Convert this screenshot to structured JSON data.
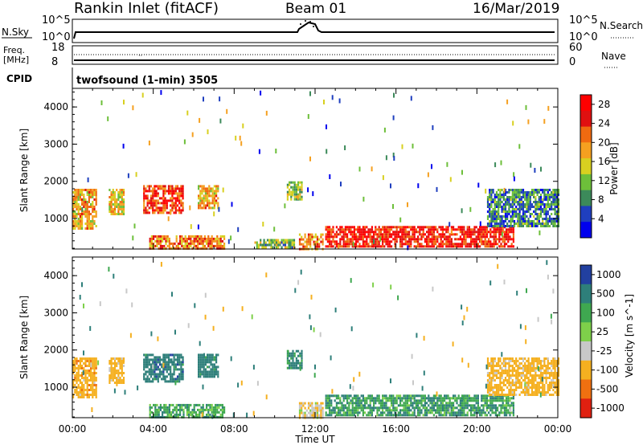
{
  "header": {
    "station": "Rankin Inlet (fitACF)",
    "beam": "Beam 01",
    "date": "16/Mar/2019"
  },
  "noise_panel": {
    "left_label": "N.Sky",
    "right_label": "N.Search",
    "left_ticks": [
      "10^5",
      "10^0"
    ],
    "right_ticks": [
      "10^5",
      "10^0"
    ]
  },
  "freq_panel": {
    "left_label_1": "Freq.",
    "left_label_2": "[MHz]",
    "left_ticks": [
      "18",
      "8"
    ],
    "right_label": "Nave",
    "right_ticks": [
      "60",
      "0"
    ]
  },
  "cpid": {
    "label": "CPID",
    "value": "twofsound (1-min) 3505"
  },
  "x_axis": {
    "label": "Time UT",
    "ticks": [
      "00:00",
      "04:00",
      "08:00",
      "12:00",
      "16:00",
      "20:00",
      "00:00"
    ]
  },
  "chart_data": [
    {
      "type": "heatmap",
      "name": "power",
      "ylabel": "Slant Range [km]",
      "xlabel": "Time UT",
      "xlim_hours": [
        0,
        24
      ],
      "ylim_km": [
        180,
        4500
      ],
      "yticks": [
        1000,
        2000,
        3000,
        4000
      ],
      "colorbar": {
        "label": "Power [dB]",
        "ticks": [
          "4",
          "8",
          "12",
          "16",
          "20",
          "24",
          "28"
        ],
        "range": [
          0,
          30
        ],
        "colors": [
          "#0000ee",
          "#1f3fbf",
          "#3c8a5a",
          "#6dbf3a",
          "#d8d020",
          "#f5a020",
          "#f06a10",
          "#e01010",
          "#ff0000"
        ]
      },
      "regions": [
        {
          "t": [
            0.0,
            1.2
          ],
          "r": [
            700,
            1800
          ],
          "level": 18
        },
        {
          "t": [
            1.8,
            2.5
          ],
          "r": [
            1100,
            1800
          ],
          "level": 16
        },
        {
          "t": [
            3.5,
            5.5
          ],
          "r": [
            1150,
            1900
          ],
          "level": 24
        },
        {
          "t": [
            6.2,
            7.2
          ],
          "r": [
            1300,
            1900
          ],
          "level": 18
        },
        {
          "t": [
            3.8,
            7.5
          ],
          "r": [
            200,
            550
          ],
          "level": 20
        },
        {
          "t": [
            10.6,
            11.3
          ],
          "r": [
            1500,
            2000
          ],
          "level": 12
        },
        {
          "t": [
            11.2,
            12.4
          ],
          "r": [
            200,
            600
          ],
          "level": 20
        },
        {
          "t": [
            12.5,
            21.8
          ],
          "r": [
            220,
            800
          ],
          "level": 26
        },
        {
          "t": [
            20.5,
            24.0
          ],
          "r": [
            800,
            1800
          ],
          "level": 8
        },
        {
          "t": [
            9.0,
            11.0
          ],
          "r": [
            200,
            450
          ],
          "level": 12
        }
      ]
    },
    {
      "type": "heatmap",
      "name": "velocity",
      "ylabel": "Slant Range [km]",
      "xlabel": "Time UT",
      "xlim_hours": [
        0,
        24
      ],
      "ylim_km": [
        180,
        4500
      ],
      "yticks": [
        1000,
        2000,
        3000,
        4000
      ],
      "colorbar": {
        "label": "Velocity [m s^-1]",
        "ticks": [
          "1000",
          "500",
          "100",
          "25",
          "-25",
          "-100",
          "-500",
          "-1000"
        ],
        "colors": [
          "#2240a0",
          "#2e7f7a",
          "#3fa850",
          "#7ed04a",
          "#c8c8c8",
          "#f5b020",
          "#f07010",
          "#e02010"
        ]
      },
      "regions": [
        {
          "t": [
            0.0,
            1.2
          ],
          "r": [
            700,
            1800
          ],
          "v": -300
        },
        {
          "t": [
            1.8,
            2.5
          ],
          "r": [
            1100,
            1800
          ],
          "v": -200
        },
        {
          "t": [
            3.5,
            5.5
          ],
          "r": [
            1150,
            1900
          ],
          "v": 300
        },
        {
          "t": [
            6.2,
            7.2
          ],
          "r": [
            1300,
            1900
          ],
          "v": 200
        },
        {
          "t": [
            3.8,
            7.5
          ],
          "r": [
            200,
            550
          ],
          "v": 60
        },
        {
          "t": [
            10.6,
            11.3
          ],
          "r": [
            1500,
            2000
          ],
          "v": 150
        },
        {
          "t": [
            11.2,
            12.4
          ],
          "r": [
            200,
            600
          ],
          "v": -80
        },
        {
          "t": [
            12.5,
            21.8
          ],
          "r": [
            220,
            800
          ],
          "v": 80
        },
        {
          "t": [
            20.5,
            24.0
          ],
          "r": [
            800,
            1800
          ],
          "v": -200
        }
      ]
    }
  ]
}
